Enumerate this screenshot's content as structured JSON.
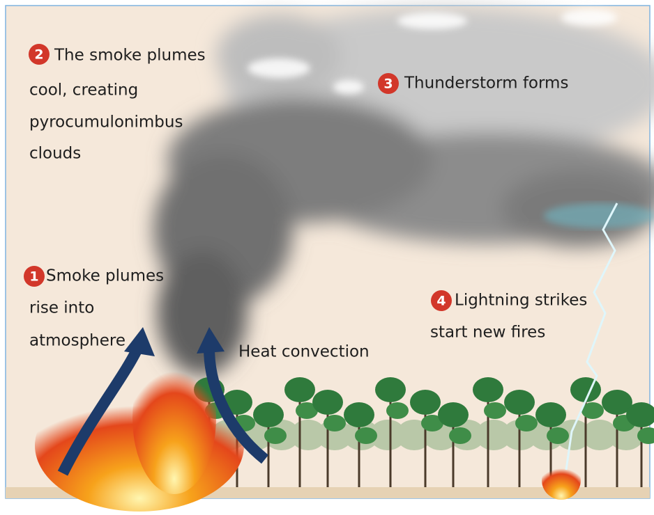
{
  "steps": [
    {
      "number": "1",
      "lines": [
        "Smoke plumes",
        "rise into",
        "atmosphere"
      ]
    },
    {
      "number": "2",
      "lines": [
        "The smoke plumes",
        "cool, creating",
        "pyrocumulonimbus",
        "clouds"
      ]
    },
    {
      "number": "3",
      "lines": [
        "Thunderstorm forms"
      ]
    },
    {
      "number": "4",
      "lines": [
        "Lightning strikes",
        "start new fires"
      ]
    }
  ],
  "convection_label": "Heat convection"
}
